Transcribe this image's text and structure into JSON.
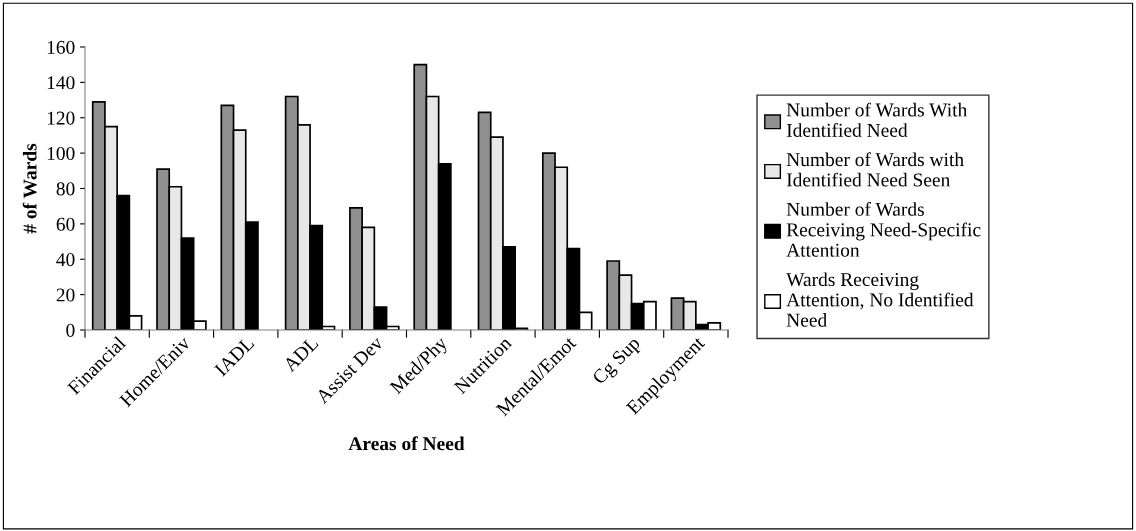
{
  "chart_data": {
    "type": "bar",
    "xlabel": "Areas of Need",
    "ylabel": "# of Wards",
    "categories": [
      "Financial",
      "Home/Eniv",
      "IADL",
      "ADL",
      "Assist Dev",
      "Med/Phy",
      "Nutrition",
      "Mental/Emot",
      "Cg Sup",
      "Employment"
    ],
    "series": [
      {
        "name": "Number of Wards With Identified Need",
        "color": "#909090",
        "values": [
          129,
          91,
          127,
          132,
          69,
          150,
          123,
          100,
          39,
          18
        ]
      },
      {
        "name": "Number of Wards with Identified Need Seen",
        "color": "#e8e8e8",
        "values": [
          115,
          81,
          113,
          116,
          58,
          132,
          109,
          92,
          31,
          16
        ]
      },
      {
        "name": "Number of Wards Receiving Need-Specific Attention",
        "color": "#000000",
        "values": [
          76,
          52,
          61,
          59,
          13,
          94,
          47,
          46,
          15,
          3
        ]
      },
      {
        "name": "Wards Receiving Attention, No Identified Need",
        "color": "#ffffff",
        "values": [
          8,
          5,
          0,
          2,
          2,
          0,
          1,
          10,
          16,
          4
        ]
      }
    ],
    "ylim": [
      0,
      160
    ],
    "yticks": [
      0,
      20,
      40,
      60,
      80,
      100,
      120,
      140,
      160
    ],
    "grid": false,
    "legend": "right"
  }
}
